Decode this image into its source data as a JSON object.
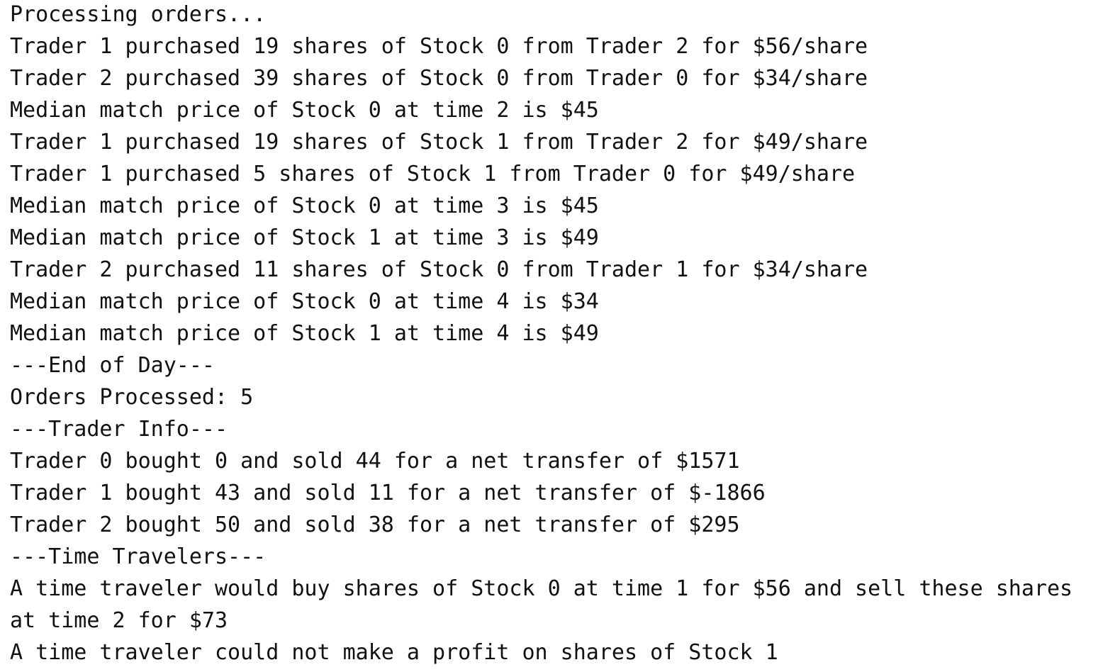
{
  "console": {
    "lines": [
      "Processing orders...",
      "Trader 1 purchased 19 shares of Stock 0 from Trader 2 for $56/share",
      "Trader 2 purchased 39 shares of Stock 0 from Trader 0 for $34/share",
      "Median match price of Stock 0 at time 2 is $45",
      "Trader 1 purchased 19 shares of Stock 1 from Trader 2 for $49/share",
      "Trader 1 purchased 5 shares of Stock 1 from Trader 0 for $49/share",
      "Median match price of Stock 0 at time 3 is $45",
      "Median match price of Stock 1 at time 3 is $49",
      "Trader 2 purchased 11 shares of Stock 0 from Trader 1 for $34/share",
      "Median match price of Stock 0 at time 4 is $34",
      "Median match price of Stock 1 at time 4 is $49",
      "---End of Day---",
      "Orders Processed: 5",
      "---Trader Info---",
      "Trader 0 bought 0 and sold 44 for a net transfer of $1571",
      "Trader 1 bought 43 and sold 11 for a net transfer of $-1866",
      "Trader 2 bought 50 and sold 38 for a net transfer of $295",
      "---Time Travelers---",
      "A time traveler would buy shares of Stock 0 at time 1 for $56 and sell these shares at time 2 for $73",
      "A time traveler could not make a profit on shares of Stock 1"
    ]
  }
}
